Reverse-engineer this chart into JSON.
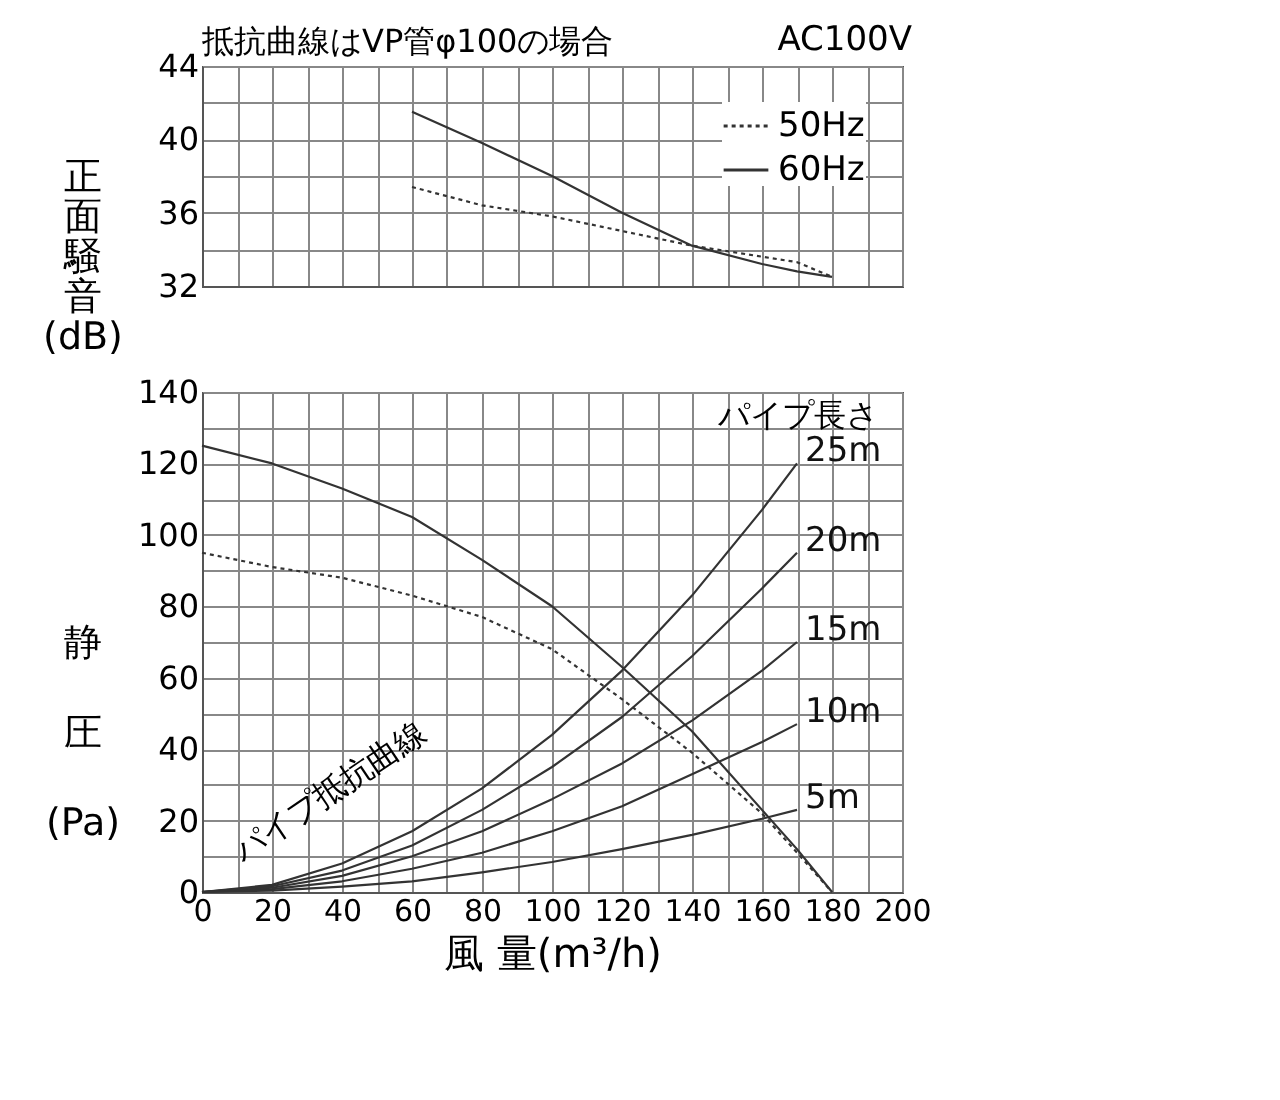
{
  "chart_data": [
    {
      "type": "line",
      "title": "抵抗曲線はVP管φ100の場合",
      "annotations": [
        "AC100V"
      ],
      "ylabel": "正面騒音(dB)",
      "xlim": [
        0,
        200
      ],
      "ylim": [
        32,
        44
      ],
      "xticks": [
        0,
        10,
        20,
        30,
        40,
        50,
        60,
        70,
        80,
        90,
        100,
        110,
        120,
        130,
        140,
        150,
        160,
        170,
        180,
        190,
        200
      ],
      "yticks": [
        32,
        {
          "value": 34,
          "label": null
        },
        36,
        {
          "value": 38,
          "label": null
        },
        40,
        {
          "value": 42,
          "label": null
        },
        44
      ],
      "tick_labels": "y",
      "grid": true,
      "legend": "top right",
      "x": [
        60,
        80,
        100,
        120,
        140,
        160,
        170,
        180
      ],
      "series": [
        {
          "name": "50Hz",
          "color": "#333333",
          "line_style": "dotted",
          "values": [
            37.4,
            36.4,
            35.8,
            35,
            34.2,
            33.6,
            33.3,
            32.5
          ]
        },
        {
          "name": "60Hz",
          "color": "#333333",
          "line_style": "solid",
          "values": [
            41.5,
            39.8,
            38,
            36,
            34.2,
            33.2,
            32.8,
            32.5
          ]
        }
      ]
    },
    {
      "type": "line",
      "ylabel": "静圧(Pa)",
      "xlabel": "風 量(m³/h)",
      "xlim": [
        0,
        200
      ],
      "ylim": [
        0,
        140
      ],
      "xticks": [
        0,
        {
          "value": 10,
          "label": null
        },
        20,
        {
          "value": 30,
          "label": null
        },
        40,
        {
          "value": 50,
          "label": null
        },
        60,
        {
          "value": 70,
          "label": null
        },
        80,
        {
          "value": 90,
          "label": null
        },
        100,
        {
          "value": 110,
          "label": null
        },
        120,
        {
          "value": 130,
          "label": null
        },
        140,
        {
          "value": 150,
          "label": null
        },
        160,
        {
          "value": 170,
          "label": null
        },
        180,
        {
          "value": 190,
          "label": null
        },
        200
      ],
      "yticks": [
        0,
        {
          "value": 10,
          "label": null
        },
        20,
        {
          "value": 30,
          "label": null
        },
        40,
        {
          "value": 50,
          "label": null
        },
        60,
        {
          "value": 70,
          "label": null
        },
        80,
        {
          "value": 90,
          "label": null
        },
        100,
        {
          "value": 110,
          "label": null
        },
        120,
        {
          "value": 130,
          "label": null
        },
        140
      ],
      "grid": true,
      "annotations": [
        "パイプ長さ",
        "パイプ抵抗曲線"
      ],
      "series": [
        {
          "color": "#333333",
          "line_style": "dotted",
          "x": [
            0,
            20,
            40,
            60,
            80,
            100,
            120,
            140,
            160,
            170,
            180
          ],
          "values": [
            95,
            91,
            88,
            83,
            77,
            68,
            54,
            39,
            22,
            11,
            0
          ]
        },
        {
          "color": "#333333",
          "line_style": "solid",
          "x": [
            0,
            20,
            40,
            60,
            80,
            100,
            120,
            140,
            160,
            170,
            180
          ],
          "values": [
            125,
            120,
            113,
            105,
            93,
            80,
            63,
            45,
            23,
            12,
            0
          ]
        },
        {
          "name": "25m",
          "color": "#333333",
          "line_style": "solid",
          "x": [
            0,
            20,
            40,
            60,
            80,
            100,
            120,
            140,
            160,
            170
          ],
          "values": [
            0,
            2,
            8,
            17,
            29,
            44,
            62,
            83,
            107,
            120
          ]
        },
        {
          "name": "20m",
          "color": "#333333",
          "line_style": "solid",
          "x": [
            0,
            20,
            40,
            60,
            80,
            100,
            120,
            140,
            160,
            170
          ],
          "values": [
            0,
            1.6,
            6,
            13,
            23,
            35,
            49,
            66,
            85,
            95
          ]
        },
        {
          "name": "15m",
          "color": "#333333",
          "line_style": "solid",
          "x": [
            0,
            20,
            40,
            60,
            80,
            100,
            120,
            140,
            160,
            170
          ],
          "values": [
            0,
            1.2,
            4.5,
            10,
            17,
            26,
            36,
            48,
            62,
            70
          ]
        },
        {
          "name": "10m",
          "color": "#333333",
          "line_style": "solid",
          "x": [
            0,
            20,
            40,
            60,
            80,
            100,
            120,
            140,
            160,
            170
          ],
          "values": [
            0,
            0.8,
            3,
            6.5,
            11,
            17,
            24,
            33,
            42,
            47
          ]
        },
        {
          "name": "5m",
          "color": "#333333",
          "line_style": "solid",
          "x": [
            0,
            20,
            40,
            60,
            80,
            100,
            120,
            140,
            160,
            170
          ],
          "values": [
            0,
            0.4,
            1.5,
            3,
            5.5,
            8.4,
            12,
            16,
            20.5,
            23
          ]
        }
      ]
    }
  ]
}
